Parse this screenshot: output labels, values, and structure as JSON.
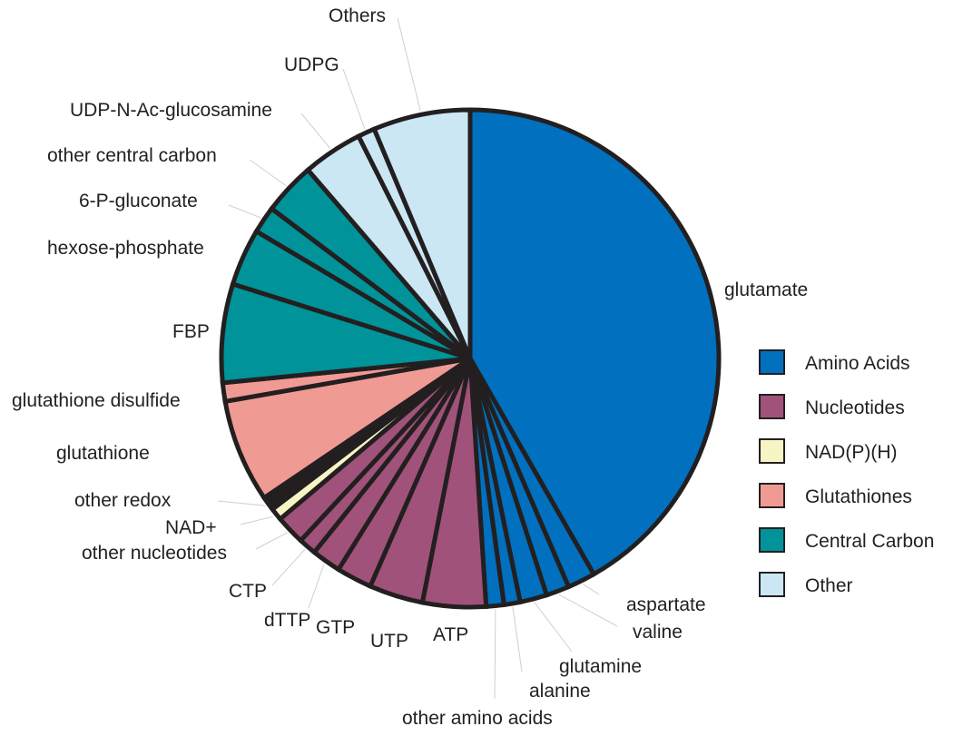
{
  "chart_data": {
    "type": "pie",
    "title": "",
    "legend_position": "right",
    "groups": [
      {
        "name": "Amino Acids",
        "color": "#0070BF"
      },
      {
        "name": "Nucleotides",
        "color": "#A0527A"
      },
      {
        "name": "NAD(P)(H)",
        "color": "#F8F5C4"
      },
      {
        "name": "Glutathiones",
        "color": "#F09A94"
      },
      {
        "name": "Central Carbon",
        "color": "#009399"
      },
      {
        "name": "Other",
        "color": "#CCE7F4"
      }
    ],
    "slices": [
      {
        "label": "glutamate",
        "group": 0,
        "value": 41.7
      },
      {
        "label": "aspartate",
        "group": 0,
        "value": 1.8
      },
      {
        "label": "valine",
        "group": 0,
        "value": 1.5
      },
      {
        "label": "glutamine",
        "group": 0,
        "value": 1.75
      },
      {
        "label": "alanine",
        "group": 0,
        "value": 1.05
      },
      {
        "label": "other amino acids",
        "group": 0,
        "value": 1.15
      },
      {
        "label": "ATP",
        "group": 1,
        "value": 4.1
      },
      {
        "label": "UTP",
        "group": 1,
        "value": 3.5
      },
      {
        "label": "GTP",
        "group": 1,
        "value": 2.3
      },
      {
        "label": "dTTP",
        "group": 1,
        "value": 1.9
      },
      {
        "label": "CTP",
        "group": 1,
        "value": 1.15
      },
      {
        "label": "other nucleotides",
        "group": 1,
        "value": 1.9
      },
      {
        "label": "NAD+",
        "group": 2,
        "value": 0.8
      },
      {
        "label": "other redox",
        "group": 2,
        "value": 0.9
      },
      {
        "label": "glutathione",
        "group": 3,
        "value": 6.7
      },
      {
        "label": "glutathione disulfide",
        "group": 3,
        "value": 1.2
      },
      {
        "label": "FBP",
        "group": 4,
        "value": 6.4
      },
      {
        "label": "hexose-phosphate",
        "group": 4,
        "value": 3.7
      },
      {
        "label": "6-P-gluconate",
        "group": 4,
        "value": 1.75
      },
      {
        "label": "other central carbon",
        "group": 4,
        "value": 3.4
      },
      {
        "label": "UDP-N-Ac-glucosamine",
        "group": 5,
        "value": 3.9
      },
      {
        "label": "UDPG",
        "group": 5,
        "value": 1.1
      },
      {
        "label": "Others",
        "group": 5,
        "value": 6.3
      }
    ]
  }
}
